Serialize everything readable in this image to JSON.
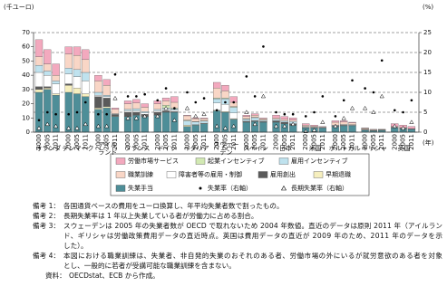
{
  "chart_data": {
    "type": "bar",
    "y_label": "(千ユーロ)",
    "y2_label": "(%)",
    "x_label": "(年)",
    "groups": [
      [
        "オランダ"
      ],
      [
        "デンマーク"
      ],
      [
        "アイル",
        "ランド"
      ],
      [
        "フランス"
      ],
      [
        "ドイツ"
      ],
      [
        "イタリア"
      ],
      [
        "スウェー",
        "デン"
      ],
      [
        "スペイン"
      ],
      [
        "日本"
      ],
      [
        "米国"
      ],
      [
        "ポルトガル"
      ],
      [
        "ギリシャ"
      ],
      [
        "英国"
      ]
    ],
    "categories": [
      "2000",
      "2005",
      "2011",
      "2000",
      "2005",
      "2011",
      "2000",
      "2005",
      "2011",
      "2000",
      "2005",
      "2011",
      "2000",
      "2005",
      "2011",
      "2000",
      "2005",
      "2011",
      "2000",
      "2005",
      "2011",
      "2000",
      "2005",
      "2011",
      "2000",
      "2005",
      "2011",
      "2000",
      "2005",
      "2011",
      "2000",
      "2005",
      "2011",
      "2000",
      "2005",
      "2011",
      "2000",
      "2005",
      "2011"
    ],
    "ylim": [
      0,
      70
    ],
    "yticks": [
      0,
      10,
      20,
      30,
      40,
      50,
      60,
      70
    ],
    "y2lim": [
      0,
      25
    ],
    "y2ticks": [
      0,
      5,
      10,
      15,
      20,
      25
    ],
    "grid": "y2",
    "series": [
      {
        "name": "失業手当",
        "color": "#4e8e98",
        "values": [
          28,
          30,
          26,
          28,
          27,
          25,
          16,
          17,
          11,
          11,
          12,
          11,
          12,
          14,
          14,
          4,
          5,
          6,
          15,
          14,
          9,
          7,
          7.5,
          7,
          7,
          6,
          5,
          3,
          3,
          3,
          4,
          4.5,
          4.5,
          1.5,
          1,
          1.3,
          3,
          2.5,
          2
        ]
      },
      {
        "name": "早期退職",
        "color": "#f6efbe",
        "values": [
          2,
          1,
          1,
          5,
          4,
          2,
          1,
          1,
          0.3,
          0,
          0,
          0,
          0,
          0,
          0,
          1,
          0.3,
          0.3,
          0.5,
          0.5,
          0.5,
          0,
          0,
          0,
          0,
          0,
          0,
          0,
          0,
          0,
          0,
          0,
          0,
          0,
          0,
          0,
          0,
          0,
          0
        ]
      },
      {
        "name": "雇用創出",
        "color": "#5a5a5a",
        "values": [
          2,
          1,
          0,
          1,
          0,
          0,
          8,
          6,
          1,
          3,
          2,
          1.5,
          2,
          1,
          0.5,
          0,
          0,
          0,
          0,
          0,
          0,
          0.5,
          0.4,
          0.3,
          1,
          1,
          1,
          0.2,
          0.1,
          0.05,
          0.2,
          0.2,
          0.2,
          0.1,
          0,
          0,
          0.2,
          0.1,
          0.15
        ]
      },
      {
        "name": "障害者等の雇用・制御",
        "color": "#ffffff",
        "values": [
          10,
          8,
          7,
          7,
          8,
          9,
          1,
          1,
          0.2,
          1,
          1,
          1,
          1,
          1,
          1,
          0,
          0,
          0,
          5,
          5,
          4,
          0.3,
          0.3,
          0.2,
          0,
          0,
          0,
          0.5,
          0.2,
          0.05,
          0.3,
          0.2,
          0.1,
          0,
          0,
          0,
          0.2,
          0.2,
          0.1
        ]
      },
      {
        "name": "雇用インセンティブ",
        "color": "#bfe2ee",
        "values": [
          5,
          3,
          2,
          4,
          5,
          6,
          2,
          1,
          0.5,
          1,
          1.5,
          1,
          1,
          1,
          1,
          3,
          2,
          1.5,
          3,
          4,
          4,
          1.4,
          2,
          0.8,
          1,
          1,
          1.5,
          0.3,
          0.2,
          0.1,
          0.5,
          0.5,
          0.5,
          0.3,
          0.2,
          0.2,
          0.1,
          0.1,
          0.05
        ]
      },
      {
        "name": "起業インセンティブ",
        "color": "#d2e9b3",
        "values": [
          0,
          0,
          0,
          0,
          0,
          0,
          0,
          0,
          0,
          0,
          0,
          0,
          0,
          2,
          0.5,
          0.5,
          0.2,
          0.2,
          0.5,
          0.5,
          0.5,
          0.3,
          0.3,
          0.2,
          0,
          0,
          0,
          0,
          0,
          0,
          0,
          0,
          0,
          0.1,
          0.1,
          0.1,
          0,
          0,
          0
        ]
      },
      {
        "name": "職業訓練",
        "color": "#f9d6c6",
        "values": [
          6,
          5,
          4,
          10,
          10,
          9,
          8,
          7,
          3,
          4,
          4,
          3,
          4,
          3,
          4,
          3,
          2,
          1.5,
          7,
          5,
          3,
          1.5,
          1.5,
          1,
          1,
          1,
          1,
          1,
          0.7,
          0.4,
          2,
          1.8,
          1.2,
          0.8,
          0.5,
          0.3,
          0.5,
          0.3,
          0.2
        ]
      },
      {
        "name": "労働市場サービス",
        "color": "#f3a9be",
        "values": [
          12,
          10,
          8,
          5,
          6,
          7,
          4,
          4,
          1,
          2,
          2.5,
          2.5,
          2,
          2,
          4,
          0.5,
          0.5,
          0.5,
          4,
          4,
          4,
          1,
          1,
          0.5,
          2,
          2,
          1.5,
          1,
          0.8,
          0.4,
          1,
          0.8,
          0.5,
          0.2,
          0.2,
          0.1,
          2,
          1.8,
          1.5
        ]
      }
    ],
    "lines": [
      {
        "name": "失業率（右軸）",
        "color": "#000000",
        "marker": "dot",
        "axis": "y2",
        "values": [
          3,
          5,
          4.5,
          4.5,
          5,
          7.5,
          4.5,
          4.5,
          14.5,
          9,
          9,
          9.5,
          8,
          11,
          6,
          10,
          7.5,
          8.5,
          5.5,
          7.5,
          7.5,
          14,
          9,
          21.5,
          5,
          4.5,
          4.5,
          4,
          5,
          9,
          4,
          8,
          13,
          11,
          10,
          18,
          5.5,
          5,
          8
        ]
      },
      {
        "name": "長期失業率（右軸）",
        "color": "#000000",
        "marker": "triangle",
        "axis": "y2",
        "values": [
          1,
          2,
          1.5,
          1,
          1,
          2,
          1.5,
          1.5,
          8.5,
          3.5,
          3.5,
          4,
          4,
          6,
          3,
          6,
          4,
          4.5,
          1.5,
          1,
          1.5,
          5,
          2,
          9,
          1.5,
          1.5,
          2,
          0.2,
          0.5,
          2.5,
          1.5,
          3.5,
          6,
          6,
          5,
          9,
          1.5,
          1,
          2.5
        ]
      }
    ],
    "notes": [
      {
        "label": "備考 1：",
        "lines": [
          "各国通貨ベースの費用をユーロ換算し、年平均失業者数で割ったもの。"
        ]
      },
      {
        "label": "備考 2：",
        "lines": [
          "長期失業率は 1 年以上失業している者が労働力に占める割合。"
        ]
      },
      {
        "label": "備考 3：",
        "lines": [
          "スウェーデンは 2005 年の失業者数が OECD で取れないため 2004 年数値。直近のデータは原則 2011 年（アイルラン",
          "ド、ギリシャは労働政策費用データの直近時点。英国は費用データの直近が 2009 年のため、2011 年のデータを示",
          "した）。"
        ]
      },
      {
        "label": "備考 4：",
        "lines": [
          "本図における職業訓練は、失業者、非自発的失業のおそれのある者、労働市場の外にいるが就労意欲のある者を対象",
          "とし、一般的に若者が受講可能な職業訓練を含まない。"
        ]
      },
      {
        "label": "資料：",
        "lines": [
          "OECDstat、ECB から作成。"
        ]
      }
    ]
  }
}
